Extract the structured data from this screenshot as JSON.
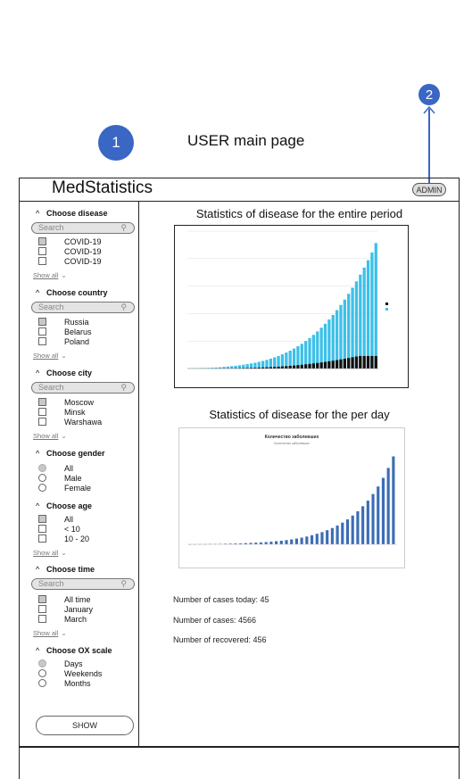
{
  "annotations": {
    "marker1": "1",
    "marker2": "2",
    "caption": "USER main page"
  },
  "header": {
    "app_title": "MedStatistics",
    "admin_button": "ADMIN"
  },
  "sidebar": {
    "disease": {
      "title": "Choose disease",
      "search_placeholder": "Search",
      "options": [
        {
          "label": "COVID-19",
          "checked": true
        },
        {
          "label": "COVID-19",
          "checked": false
        },
        {
          "label": "COVID-19",
          "checked": false
        }
      ],
      "show_all": "Show all"
    },
    "country": {
      "title": "Choose country",
      "search_placeholder": "Search",
      "options": [
        {
          "label": "Russia",
          "checked": true
        },
        {
          "label": "Belarus",
          "checked": false
        },
        {
          "label": "Poland",
          "checked": false
        }
      ],
      "show_all": "Show all"
    },
    "city": {
      "title": "Choose city",
      "search_placeholder": "Search",
      "options": [
        {
          "label": "Moscow",
          "checked": true
        },
        {
          "label": "Minsk",
          "checked": false
        },
        {
          "label": "Warshawa",
          "checked": false
        }
      ],
      "show_all": "Show all"
    },
    "gender": {
      "title": "Choose gender",
      "options": [
        {
          "label": "All",
          "checked": true
        },
        {
          "label": "Male",
          "checked": false
        },
        {
          "label": "Female",
          "checked": false
        }
      ]
    },
    "age": {
      "title": "Choose age",
      "options": [
        {
          "label": "All",
          "checked": true
        },
        {
          "label": "< 10",
          "checked": false
        },
        {
          "label": "10 - 20",
          "checked": false
        }
      ],
      "show_all": "Show all"
    },
    "time": {
      "title": "Choose time",
      "search_placeholder": "Search",
      "options": [
        {
          "label": "All time",
          "checked": true
        },
        {
          "label": "January",
          "checked": false
        },
        {
          "label": "March",
          "checked": false
        }
      ],
      "show_all": "Show all"
    },
    "ox_scale": {
      "title": "Choose OX scale",
      "options": [
        {
          "label": "Days",
          "checked": true
        },
        {
          "label": "Weekends",
          "checked": false
        },
        {
          "label": "Months",
          "checked": false
        }
      ]
    },
    "show_button": "SHOW"
  },
  "main": {
    "chart1_title": "Statistics of disease for the entire period",
    "chart2_title": "Statistics of disease for the per day",
    "cases_today": "Number of cases today: 45",
    "cases_total": "Number of cases: 4566",
    "recovered": "Number of recovered: 456"
  },
  "chart_data": [
    {
      "type": "bar",
      "title": "",
      "colors": {
        "cases": "#3cc0e8",
        "recovered": "#111111"
      },
      "series": [
        {
          "values": [
            5,
            8,
            12,
            15,
            18,
            22,
            28,
            35,
            45,
            58,
            70,
            85,
            100,
            118,
            138,
            160,
            185,
            212,
            243,
            277,
            315,
            358,
            405,
            458,
            516,
            580,
            650,
            727,
            810,
            900,
            1000,
            1108,
            1225,
            1350,
            1485,
            1630,
            1785,
            1950,
            2126,
            2312,
            2510,
            2720,
            2940,
            3172,
            3416,
            3672,
            3940,
            4221,
            4566
          ]
        },
        {
          "values": [
            1,
            1,
            2,
            2,
            3,
            3,
            4,
            5,
            6,
            8,
            10,
            12,
            14,
            17,
            20,
            23,
            27,
            31,
            36,
            41,
            47,
            53,
            60,
            68,
            77,
            87,
            98,
            110,
            123,
            137,
            152,
            168,
            185,
            203,
            222,
            242,
            263,
            285,
            308,
            332,
            357,
            383,
            410,
            438,
            456,
            456,
            456,
            456,
            456
          ]
        }
      ]
    },
    {
      "type": "bar",
      "title": "Количество заболевших",
      "subtitle": "Количество заболевших",
      "color": "#3b6db5",
      "values": [
        1,
        1,
        2,
        2,
        3,
        3,
        4,
        5,
        6,
        7,
        8,
        10,
        12,
        14,
        16,
        19,
        22,
        26,
        30,
        35,
        41,
        48,
        56,
        65,
        76,
        88,
        102,
        118,
        136,
        157,
        181,
        208,
        240,
        276,
        318,
        365,
        420,
        483,
        555,
        638,
        734
      ]
    }
  ]
}
